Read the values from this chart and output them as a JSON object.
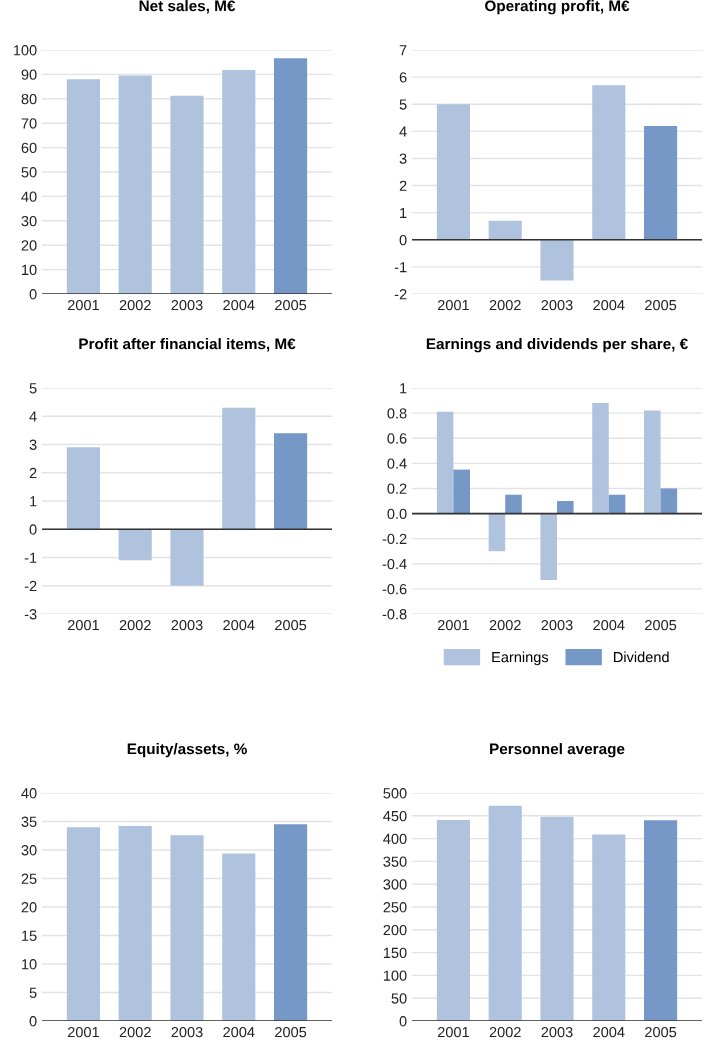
{
  "chart_data": [
    {
      "type": "bar",
      "title": "Net sales, M€",
      "categories": [
        "2001",
        "2002",
        "2003",
        "2004",
        "2005"
      ],
      "values": [
        88,
        89.5,
        81.2,
        91.8,
        96.6
      ],
      "colors": [
        "#b0c3de",
        "#b0c3de",
        "#b0c3de",
        "#b0c3de",
        "#7598c6"
      ],
      "ylim": [
        0,
        100
      ],
      "yticks": [
        0,
        10,
        20,
        30,
        40,
        50,
        60,
        70,
        80,
        90,
        100
      ],
      "grid": "y"
    },
    {
      "type": "bar",
      "title": "Operating profit, M€",
      "categories": [
        "2001",
        "2002",
        "2003",
        "2004",
        "2005"
      ],
      "values": [
        5.0,
        0.7,
        -1.5,
        5.7,
        4.2
      ],
      "colors": [
        "#b0c3de",
        "#b0c3de",
        "#b0c3de",
        "#b0c3de",
        "#7598c6"
      ],
      "ylim": [
        -2,
        7
      ],
      "yticks": [
        -2,
        -1,
        0,
        1,
        2,
        3,
        4,
        5,
        6,
        7
      ],
      "grid": "y"
    },
    {
      "type": "bar",
      "title": "Profit after financial items, M€",
      "categories": [
        "2001",
        "2002",
        "2003",
        "2004",
        "2005"
      ],
      "values": [
        2.9,
        -1.1,
        -2.0,
        4.3,
        3.4
      ],
      "colors": [
        "#b0c3de",
        "#b0c3de",
        "#b0c3de",
        "#b0c3de",
        "#7598c6"
      ],
      "ylim": [
        -3,
        5
      ],
      "yticks": [
        -3,
        -2,
        -1,
        0,
        1,
        2,
        3,
        4,
        5
      ],
      "grid": "y"
    },
    {
      "type": "bar",
      "title": "Earnings and dividends per share, €",
      "categories": [
        "2001",
        "2002",
        "2003",
        "2004",
        "2005"
      ],
      "series": [
        {
          "name": "Earnings",
          "color": "#b0c3de",
          "values": [
            0.81,
            -0.3,
            -0.53,
            0.88,
            0.82
          ]
        },
        {
          "name": "Dividend",
          "color": "#7598c6",
          "values": [
            0.35,
            0.15,
            0.1,
            0.15,
            0.2
          ]
        }
      ],
      "ylim": [
        -0.8,
        1
      ],
      "yticks": [
        -0.8,
        -0.6,
        -0.4,
        -0.2,
        {
          "value": 0,
          "label": "0.0"
        },
        0.2,
        0.4,
        0.6,
        0.8,
        1
      ],
      "grid": "y",
      "legend": "bottom"
    },
    {
      "type": "bar",
      "title": "Equity/assets, %",
      "categories": [
        "2001",
        "2002",
        "2003",
        "2004",
        "2005"
      ],
      "values": [
        34.0,
        34.2,
        32.6,
        29.4,
        34.5
      ],
      "colors": [
        "#b0c3de",
        "#b0c3de",
        "#b0c3de",
        "#b0c3de",
        "#7598c6"
      ],
      "ylim": [
        0,
        40
      ],
      "yticks": [
        0,
        5,
        10,
        15,
        20,
        25,
        30,
        35,
        40
      ],
      "grid": "y"
    },
    {
      "type": "bar",
      "title": "Personnel average",
      "categories": [
        "2001",
        "2002",
        "2003",
        "2004",
        "2005"
      ],
      "values": [
        441,
        472,
        448,
        409,
        440
      ],
      "colors": [
        "#b0c3de",
        "#b0c3de",
        "#b0c3de",
        "#b0c3de",
        "#7598c6"
      ],
      "ylim": [
        0,
        500
      ],
      "yticks": [
        0,
        50,
        100,
        150,
        200,
        250,
        300,
        350,
        400,
        450,
        500
      ],
      "grid": "y"
    }
  ]
}
